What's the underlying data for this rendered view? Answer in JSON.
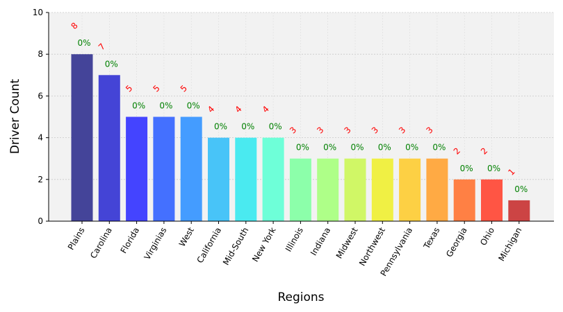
{
  "chart_data": {
    "type": "bar",
    "title": "",
    "xlabel": "Regions",
    "ylabel": "Driver Count",
    "ylim": [
      0,
      10
    ],
    "yticks": [
      0,
      2,
      4,
      6,
      8,
      10
    ],
    "grid": true,
    "categories": [
      "Plains",
      "Carolina",
      "Florida",
      "Virginias",
      "West",
      "California",
      "Mid-South",
      "New York",
      "Illinois",
      "Indiana",
      "Midwest",
      "Northwest",
      "Pennsylvania",
      "Texas",
      "Georgia",
      "Ohio",
      "Michigan"
    ],
    "values": [
      8,
      7,
      5,
      5,
      5,
      4,
      4,
      4,
      3,
      3,
      3,
      3,
      3,
      3,
      2,
      2,
      1
    ],
    "count_labels": [
      "8",
      "7",
      "5",
      "5",
      "5",
      "4",
      "4",
      "4",
      "3",
      "3",
      "3",
      "3",
      "3",
      "3",
      "2",
      "2",
      "1"
    ],
    "percent_labels": [
      "0%",
      "0%",
      "0%",
      "0%",
      "0%",
      "0%",
      "0%",
      "0%",
      "0%",
      "0%",
      "0%",
      "0%",
      "0%",
      "0%",
      "0%",
      "0%",
      "0%"
    ],
    "bar_colors": [
      "#444499",
      "#4444d6",
      "#4444ff",
      "#4470ff",
      "#449cff",
      "#48c4f8",
      "#4aeaf0",
      "#6effd8",
      "#8cffaa",
      "#aeff88",
      "#d0f766",
      "#f0f044",
      "#fdd044",
      "#ffaa44",
      "#ff8044",
      "#ff5544",
      "#cc4444"
    ],
    "count_label_color": "#ff0000",
    "percent_label_color": "#008000",
    "plot_background": "#f2f2f2"
  }
}
